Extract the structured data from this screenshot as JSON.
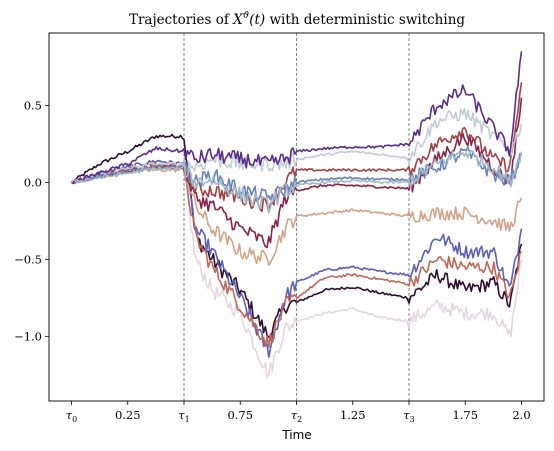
{
  "chart_data": {
    "type": "line",
    "title": "Trajectories of X^ϑ(t) with deterministic switching",
    "title_parts": {
      "prefix": "Trajectories of ",
      "var": "X",
      "sup": "ϑ",
      "arg": "(t)",
      "suffix": " with deterministic switching"
    },
    "xlabel": "Time",
    "ylabel": "",
    "xlim": [
      -0.1,
      2.1
    ],
    "ylim": [
      -1.42,
      0.97
    ],
    "grid": false,
    "legend": "none",
    "x_ticks": [
      {
        "value": 0,
        "label": "τ",
        "sub": "0"
      },
      {
        "value": 0.25,
        "label": "0.25"
      },
      {
        "value": 0.5,
        "label": "τ",
        "sub": "1"
      },
      {
        "value": 0.75,
        "label": "0.75"
      },
      {
        "value": 1.0,
        "label": "τ",
        "sub": "2"
      },
      {
        "value": 1.25,
        "label": "1.25"
      },
      {
        "value": 1.5,
        "label": "τ",
        "sub": "3"
      },
      {
        "value": 1.75,
        "label": "1.75"
      },
      {
        "value": 2.0,
        "label": "2.0"
      }
    ],
    "y_ticks": [
      {
        "value": 0.5,
        "label": "0.5"
      },
      {
        "value": 0.0,
        "label": "0.0"
      },
      {
        "value": -0.5,
        "label": "−0.5"
      },
      {
        "value": -1.0,
        "label": "−1.0"
      }
    ],
    "switching_times": [
      0.5,
      1.0,
      1.5
    ],
    "x": [
      0,
      0.125,
      0.25,
      0.375,
      0.5,
      0.55,
      0.625,
      0.75,
      0.875,
      0.95,
      1.0,
      1.125,
      1.25,
      1.375,
      1.5,
      1.625,
      1.75,
      1.875,
      1.95,
      2.0
    ],
    "series": [
      {
        "color": "#2f0f2e",
        "values": [
          0,
          0.12,
          0.2,
          0.3,
          0.3,
          -0.35,
          -0.5,
          -0.7,
          -1.0,
          -0.8,
          -0.78,
          -0.7,
          -0.68,
          -0.72,
          -0.75,
          -0.6,
          -0.7,
          -0.65,
          -0.8,
          -0.4
        ]
      },
      {
        "color": "#e3d7e2",
        "values": [
          0,
          0.05,
          0.08,
          0.1,
          0.1,
          -0.5,
          -0.7,
          -0.85,
          -1.25,
          -0.95,
          -0.9,
          -0.85,
          -0.82,
          -0.88,
          -0.9,
          -0.8,
          -0.85,
          -0.85,
          -1.0,
          -0.5
        ]
      },
      {
        "color": "#5b5fb6",
        "values": [
          0,
          0.06,
          0.1,
          0.14,
          0.12,
          -0.3,
          -0.45,
          -0.75,
          -1.1,
          -0.75,
          -0.65,
          -0.57,
          -0.55,
          -0.58,
          -0.6,
          -0.35,
          -0.45,
          -0.45,
          -0.7,
          -0.3
        ]
      },
      {
        "color": "#c0685a",
        "values": [
          0,
          0.05,
          0.09,
          0.12,
          0.1,
          -0.35,
          -0.55,
          -0.8,
          -1.05,
          -0.8,
          -0.75,
          -0.62,
          -0.6,
          -0.63,
          -0.66,
          -0.5,
          -0.55,
          -0.55,
          -0.75,
          -0.45
        ]
      },
      {
        "color": "#d4a488",
        "values": [
          0,
          0.04,
          0.07,
          0.08,
          0.08,
          -0.15,
          -0.3,
          -0.45,
          -0.5,
          -0.3,
          -0.22,
          -0.2,
          -0.18,
          -0.2,
          -0.22,
          -0.2,
          -0.2,
          -0.25,
          -0.3,
          -0.1
        ]
      },
      {
        "color": "#8c2246",
        "values": [
          0,
          0.04,
          0.07,
          0.1,
          0.1,
          -0.1,
          -0.15,
          -0.3,
          -0.4,
          -0.1,
          -0.05,
          -0.02,
          -0.02,
          -0.03,
          -0.04,
          0.15,
          0.3,
          0.1,
          0.0,
          0.55
        ]
      },
      {
        "color": "#a2404a",
        "values": [
          0,
          0.05,
          0.08,
          0.1,
          0.1,
          -0.05,
          -0.05,
          -0.1,
          -0.15,
          0.0,
          0.08,
          0.08,
          0.08,
          0.08,
          0.08,
          0.25,
          0.35,
          0.15,
          0.1,
          0.65
        ]
      },
      {
        "color": "#c3cdd7",
        "values": [
          0,
          0.05,
          0.09,
          0.12,
          0.12,
          0.1,
          0.15,
          0.12,
          0.12,
          0.12,
          0.15,
          0.18,
          0.2,
          0.18,
          0.16,
          0.4,
          0.45,
          0.3,
          0.2,
          0.38
        ]
      },
      {
        "color": "#6a83b6",
        "values": [
          0,
          0.04,
          0.07,
          0.1,
          0.1,
          0.0,
          0.05,
          -0.05,
          -0.1,
          -0.05,
          0.0,
          0.02,
          0.03,
          0.02,
          0.02,
          0.1,
          0.2,
          0.05,
          0.0,
          0.18
        ]
      },
      {
        "color": "#5a2d8c",
        "values": [
          0,
          0.06,
          0.12,
          0.22,
          0.2,
          0.15,
          0.18,
          0.15,
          0.12,
          0.15,
          0.2,
          0.22,
          0.23,
          0.23,
          0.25,
          0.5,
          0.6,
          0.35,
          0.2,
          0.85
        ]
      },
      {
        "color": "#9fb9c9",
        "values": [
          0,
          0.03,
          0.06,
          0.09,
          0.09,
          0.0,
          0.02,
          -0.08,
          -0.15,
          -0.05,
          -0.02,
          0.0,
          0.01,
          0.0,
          0.0,
          0.12,
          0.2,
          0.1,
          0.0,
          0.2
        ]
      }
    ]
  }
}
